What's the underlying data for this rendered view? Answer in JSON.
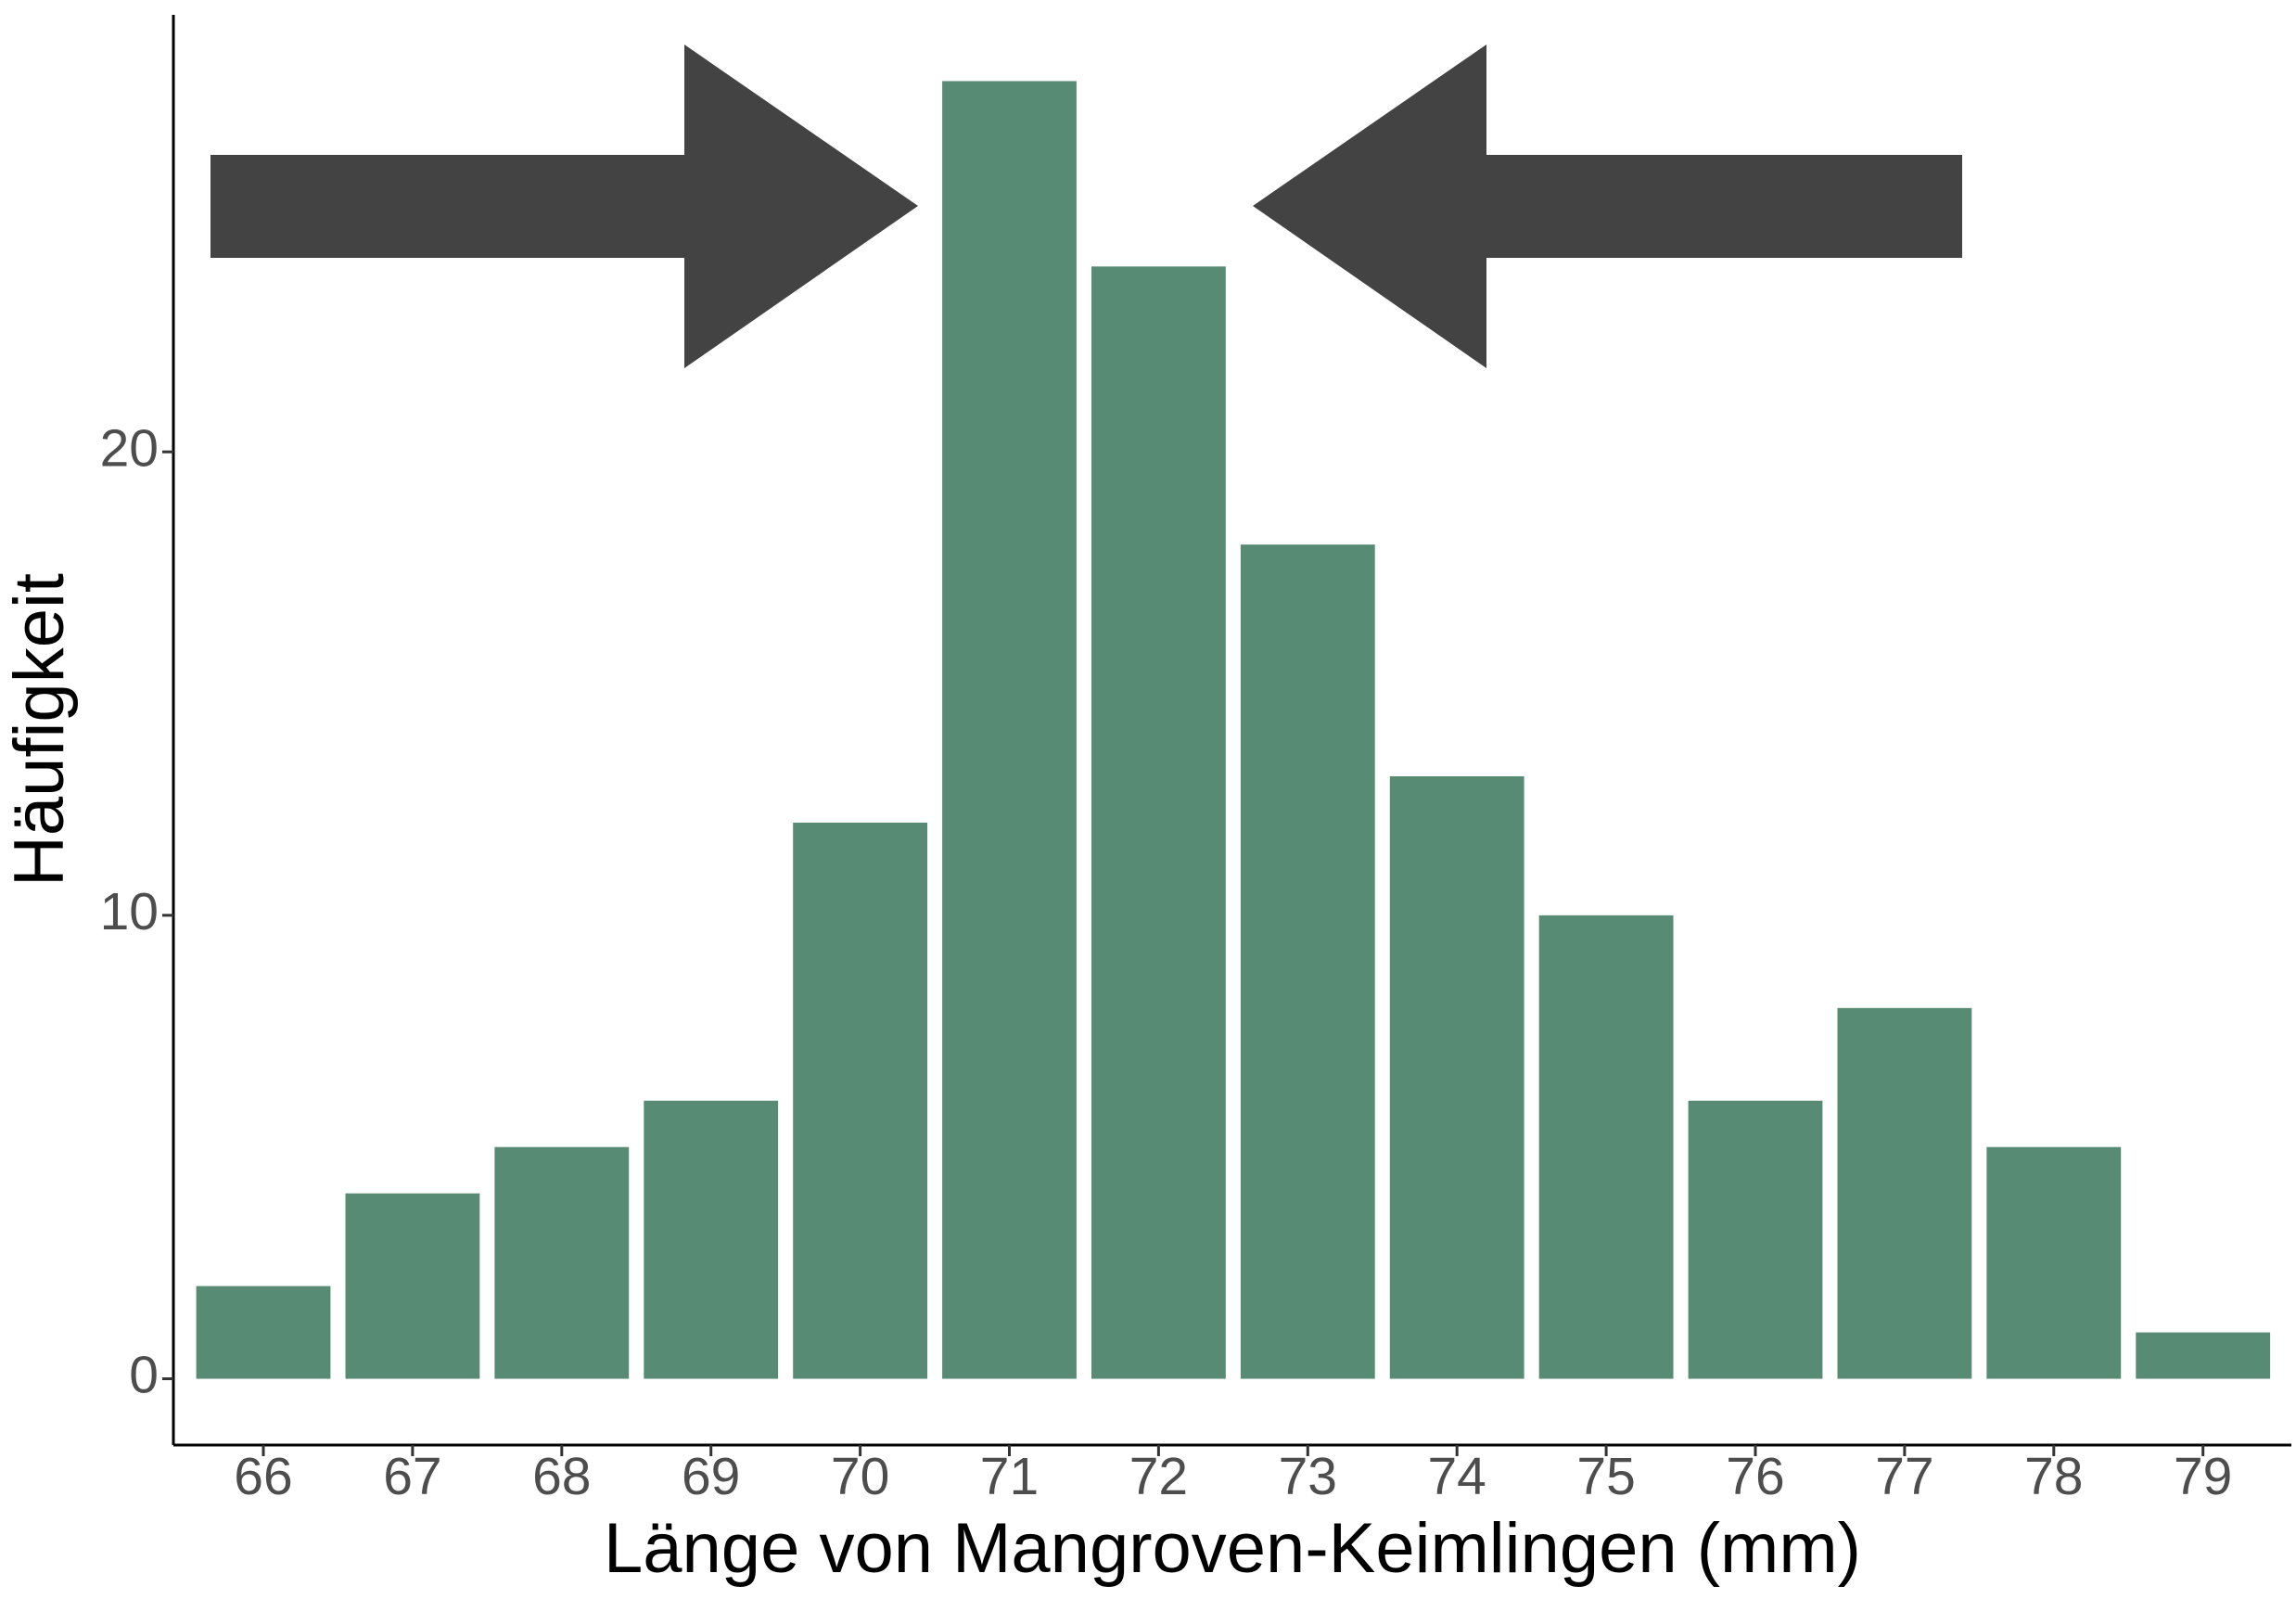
{
  "chart_data": {
    "type": "bar",
    "x_label": "Länge von Mangroven-Keimlingen (mm)",
    "y_label": "Häufigkeit",
    "categories": [
      "66",
      "67",
      "68",
      "69",
      "70",
      "71",
      "72",
      "73",
      "74",
      "75",
      "76",
      "77",
      "78",
      "79"
    ],
    "values": [
      2,
      4,
      5,
      6,
      12,
      28,
      24,
      18,
      13,
      10,
      6,
      8,
      5,
      1
    ],
    "color": "#588b73",
    "ylim": [
      -1.43,
      29.43
    ],
    "yticks": [
      0,
      10,
      20
    ],
    "grid": false
  }
}
